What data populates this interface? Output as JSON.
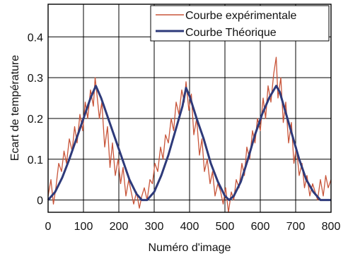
{
  "chart_data": {
    "type": "line",
    "xlabel": "Numéro d'image",
    "ylabel": "Ecart de température",
    "xlim": [
      0,
      800
    ],
    "ylim": [
      -0.03,
      0.48
    ],
    "xticks": [
      "0",
      "100",
      "200",
      "300",
      "400",
      "500",
      "600",
      "700",
      "800"
    ],
    "yticks": [
      "0",
      "0.1",
      "0.2",
      "0.3",
      "0.4"
    ],
    "grid": true,
    "legend_position": "top-right",
    "series": [
      {
        "name": "Courbe expérimentale",
        "color": "#c8553a",
        "x": [
          0,
          8,
          15,
          22,
          30,
          38,
          45,
          52,
          60,
          68,
          75,
          82,
          90,
          98,
          105,
          112,
          120,
          128,
          133,
          138,
          145,
          152,
          160,
          168,
          175,
          182,
          190,
          198,
          205,
          212,
          220,
          228,
          235,
          242,
          250,
          258,
          265,
          272,
          280,
          288,
          295,
          302,
          310,
          318,
          325,
          332,
          340,
          348,
          355,
          362,
          370,
          378,
          385,
          390,
          398,
          405,
          412,
          420,
          428,
          435,
          442,
          450,
          458,
          465,
          472,
          480,
          488,
          495,
          502,
          510,
          518,
          525,
          532,
          540,
          548,
          555,
          562,
          570,
          578,
          585,
          592,
          600,
          608,
          615,
          622,
          630,
          638,
          645,
          650,
          658,
          665,
          672,
          680,
          688,
          695,
          702,
          710,
          718,
          725,
          732,
          740,
          748,
          755,
          762,
          770,
          778,
          785,
          792,
          800
        ],
        "y": [
          0.01,
          0.05,
          -0.01,
          0.03,
          0.09,
          0.07,
          0.12,
          0.09,
          0.15,
          0.12,
          0.18,
          0.14,
          0.21,
          0.17,
          0.24,
          0.2,
          0.27,
          0.23,
          0.3,
          0.26,
          0.2,
          0.24,
          0.13,
          0.18,
          0.08,
          0.14,
          0.06,
          0.1,
          0.04,
          0.08,
          0.01,
          0.05,
          0.02,
          -0.01,
          0.02,
          -0.02,
          0.01,
          0.03,
          0.0,
          0.05,
          0.04,
          0.09,
          0.07,
          0.13,
          0.1,
          0.16,
          0.14,
          0.2,
          0.17,
          0.24,
          0.21,
          0.27,
          0.24,
          0.29,
          0.22,
          0.26,
          0.16,
          0.2,
          0.11,
          0.15,
          0.07,
          0.1,
          0.04,
          0.07,
          0.01,
          0.04,
          0.02,
          -0.01,
          0.03,
          -0.03,
          0.02,
          0.0,
          0.05,
          0.03,
          0.09,
          0.06,
          0.13,
          0.1,
          0.17,
          0.14,
          0.2,
          0.17,
          0.25,
          0.2,
          0.28,
          0.24,
          0.31,
          0.35,
          0.25,
          0.3,
          0.19,
          0.24,
          0.14,
          0.19,
          0.09,
          0.13,
          0.06,
          0.09,
          0.03,
          0.06,
          0.01,
          0.04,
          0.02,
          0.0,
          0.05,
          0.01,
          0.06,
          0.03,
          0.05
        ]
      },
      {
        "name": "Courbe Théorique",
        "color": "#2e3a7a",
        "x": [
          0,
          20,
          40,
          60,
          80,
          100,
          120,
          135,
          150,
          170,
          190,
          210,
          230,
          250,
          265,
          280,
          300,
          320,
          340,
          360,
          380,
          390,
          400,
          420,
          440,
          460,
          480,
          500,
          512,
          525,
          545,
          565,
          585,
          605,
          625,
          645,
          655,
          670,
          690,
          710,
          730,
          750,
          770,
          785,
          800
        ],
        "y": [
          0.0,
          0.02,
          0.055,
          0.1,
          0.15,
          0.2,
          0.25,
          0.28,
          0.25,
          0.2,
          0.15,
          0.1,
          0.05,
          0.015,
          0.0,
          0.0,
          0.02,
          0.06,
          0.11,
          0.17,
          0.23,
          0.275,
          0.255,
          0.2,
          0.15,
          0.09,
          0.045,
          0.01,
          0.0,
          0.01,
          0.045,
          0.1,
          0.16,
          0.21,
          0.25,
          0.28,
          0.265,
          0.22,
          0.16,
          0.1,
          0.05,
          0.02,
          0.0,
          0.0,
          0.0
        ]
      }
    ]
  }
}
